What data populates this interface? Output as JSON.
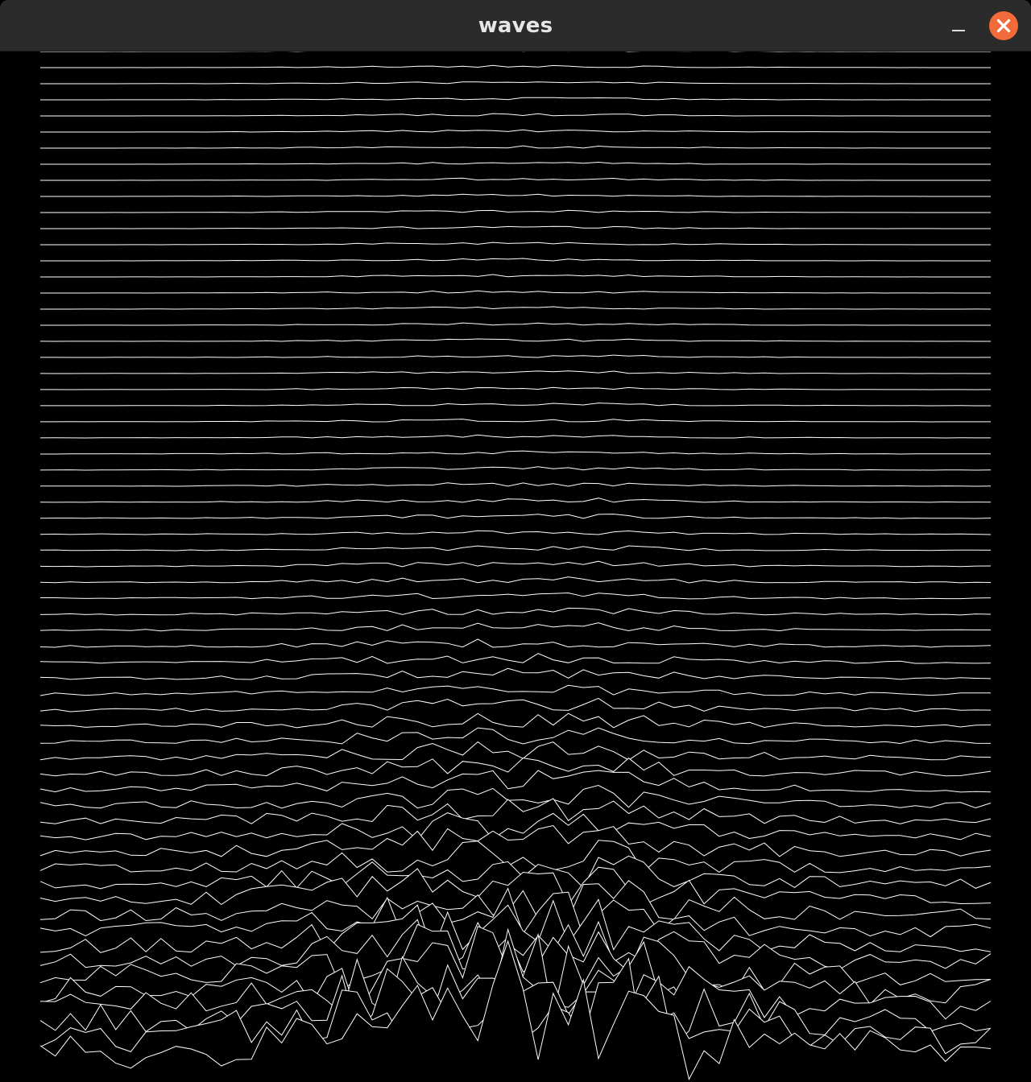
{
  "window": {
    "title": "waves"
  },
  "colors": {
    "titlebar": "#2b2b2b",
    "title_text": "#e6e6e6",
    "close_button": "#f26b3a",
    "canvas_background": "#000000",
    "line_color": "#ffffff"
  },
  "icons": {
    "minimize": "minimize-icon",
    "close": "close-icon"
  },
  "waves": {
    "line_count": 64,
    "points_per_line": 64
  }
}
